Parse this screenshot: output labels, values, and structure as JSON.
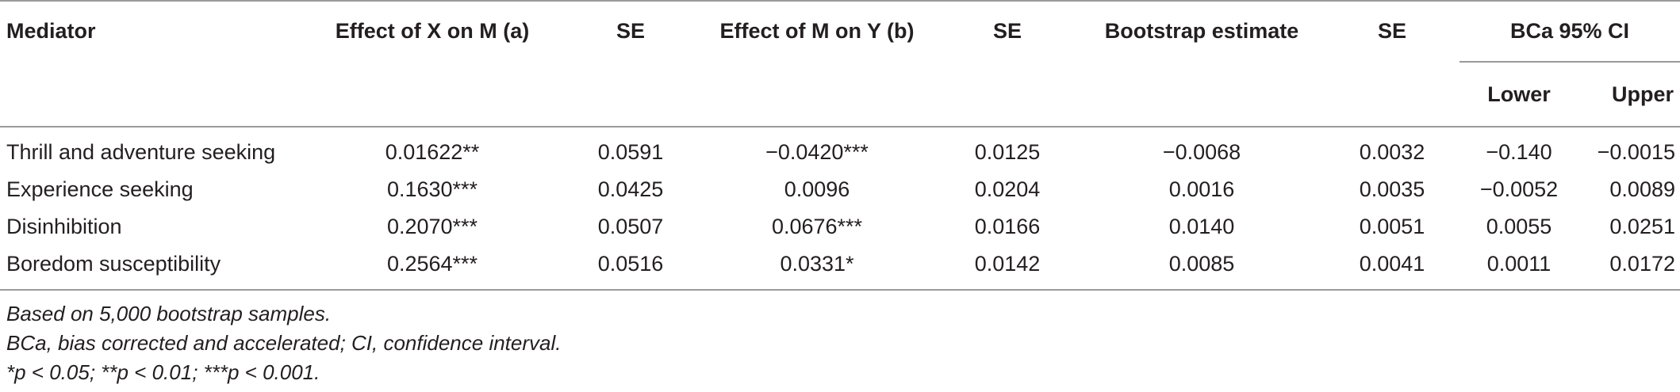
{
  "table": {
    "headers": {
      "mediator": "Mediator",
      "effect_a": "Effect of X on M (a)",
      "se1": "SE",
      "effect_b": "Effect of M on Y (b)",
      "se2": "SE",
      "bootstrap": "Bootstrap estimate",
      "se3": "SE",
      "ci": "BCa 95% CI",
      "lower": "Lower",
      "upper": "Upper"
    },
    "rows": [
      {
        "mediator": "Thrill and adventure seeking",
        "a": "0.01622**",
        "se1": "0.0591",
        "b": "−0.0420***",
        "se2": "0.0125",
        "boot": "−0.0068",
        "se3": "0.0032",
        "lower": "−0.140",
        "upper": "−0.0015"
      },
      {
        "mediator": "Experience seeking",
        "a": "0.1630***",
        "se1": "0.0425",
        "b": "0.0096",
        "se2": "0.0204",
        "boot": "0.0016",
        "se3": "0.0035",
        "lower": "−0.0052",
        "upper": "0.0089"
      },
      {
        "mediator": "Disinhibition",
        "a": "0.2070***",
        "se1": "0.0507",
        "b": "0.0676***",
        "se2": "0.0166",
        "boot": "0.0140",
        "se3": "0.0051",
        "lower": "0.0055",
        "upper": "0.0251"
      },
      {
        "mediator": "Boredom susceptibility",
        "a": "0.2564***",
        "se1": "0.0516",
        "b": "0.0331*",
        "se2": "0.0142",
        "boot": "0.0085",
        "se3": "0.0041",
        "lower": "0.0011",
        "upper": "0.0172"
      }
    ]
  },
  "notes": [
    "Based on 5,000 bootstrap samples.",
    "BCa, bias corrected and accelerated; CI, confidence interval.",
    "*p < 0.05; **p < 0.01; ***p < 0.001."
  ]
}
